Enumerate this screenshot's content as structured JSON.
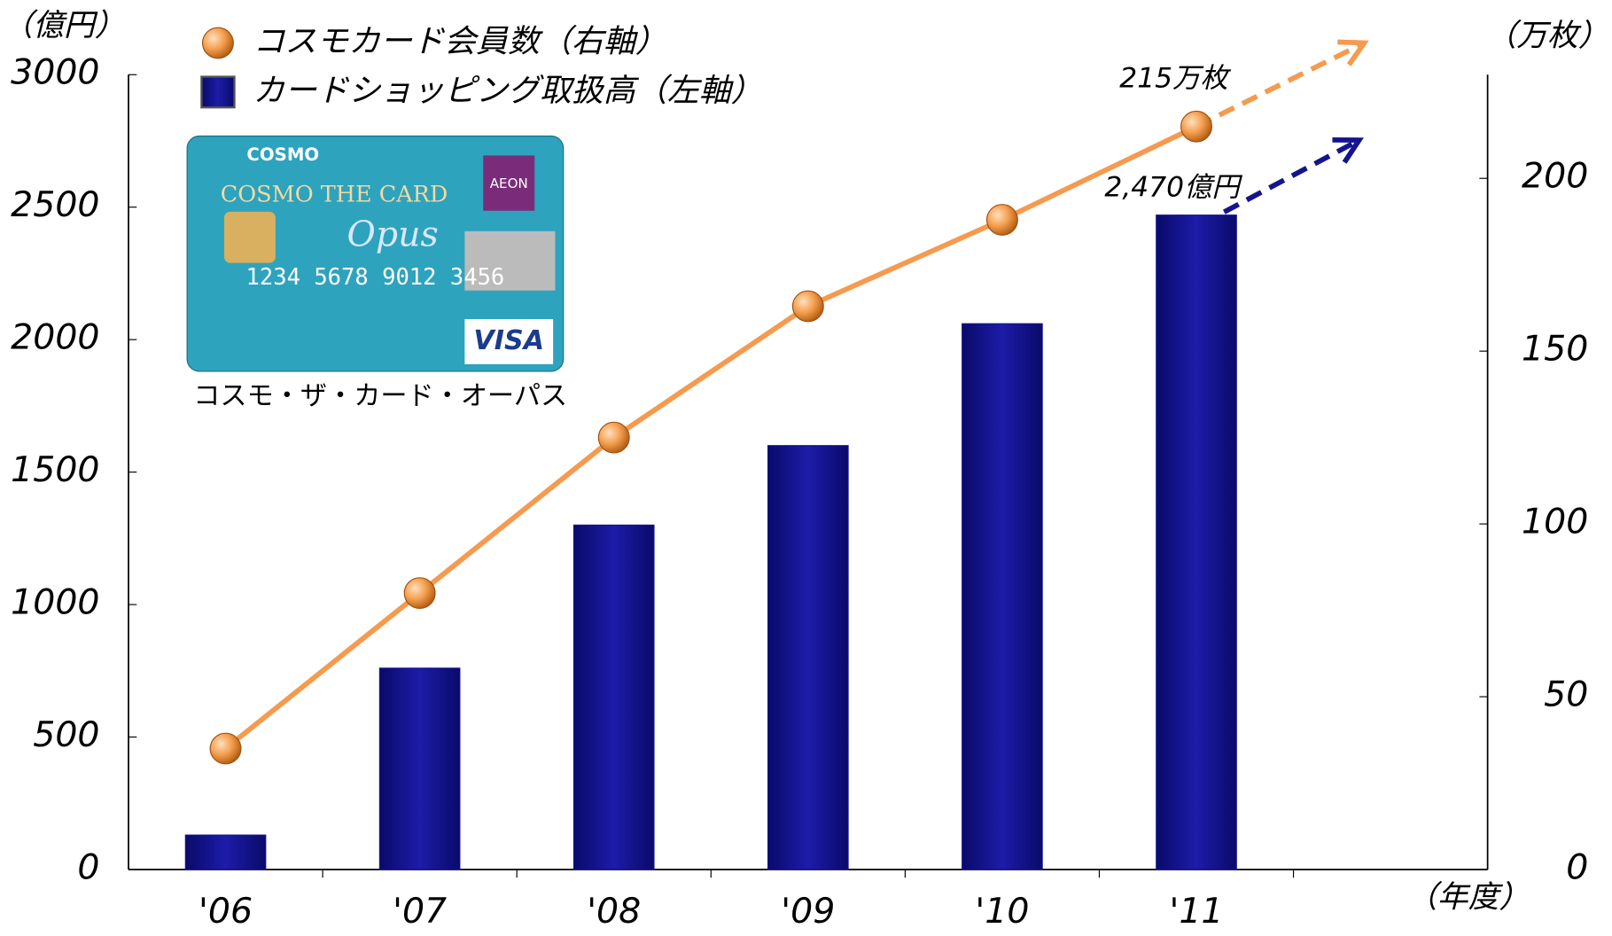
{
  "chart_data": {
    "type": "bar-line",
    "y_unit_label": "（億円）",
    "y2_unit_label": "（万枚）",
    "x_unit_label": "（年度）",
    "categories": [
      "'06",
      "'07",
      "'08",
      "'09",
      "'10",
      "'11",
      null
    ],
    "series": [
      {
        "name": "カードショッピング取扱高（左軸）",
        "type": "bar",
        "color": "#14148e",
        "axis": "y",
        "values": [
          130,
          760,
          1300,
          1600,
          2060,
          2470,
          null
        ],
        "value_labels": [
          null,
          null,
          null,
          null,
          null,
          "2,470億円",
          null
        ]
      },
      {
        "name": "コスモカード会員数（右軸）",
        "type": "line",
        "color": "#f59a4e",
        "axis": "y2",
        "values": [
          35,
          80,
          125,
          163,
          188,
          215,
          null
        ],
        "value_labels": [
          null,
          null,
          null,
          null,
          null,
          "215万枚",
          null
        ]
      }
    ],
    "ylim": [
      0,
      3000
    ],
    "yticks": [
      0,
      500,
      1000,
      1500,
      2000,
      2500,
      3000
    ],
    "y2lim": [
      0,
      230
    ],
    "y2ticks": [
      0,
      50,
      100,
      150,
      200
    ],
    "legend": "top-left",
    "card": {
      "caption": "コスモ・ザ・カード・オーパス",
      "brand": "COSMO",
      "name": "COSMO THE CARD",
      "script": "Opus",
      "number": "1234 5678 9012 3456",
      "network": "VISA",
      "issuer": "AEON"
    }
  }
}
